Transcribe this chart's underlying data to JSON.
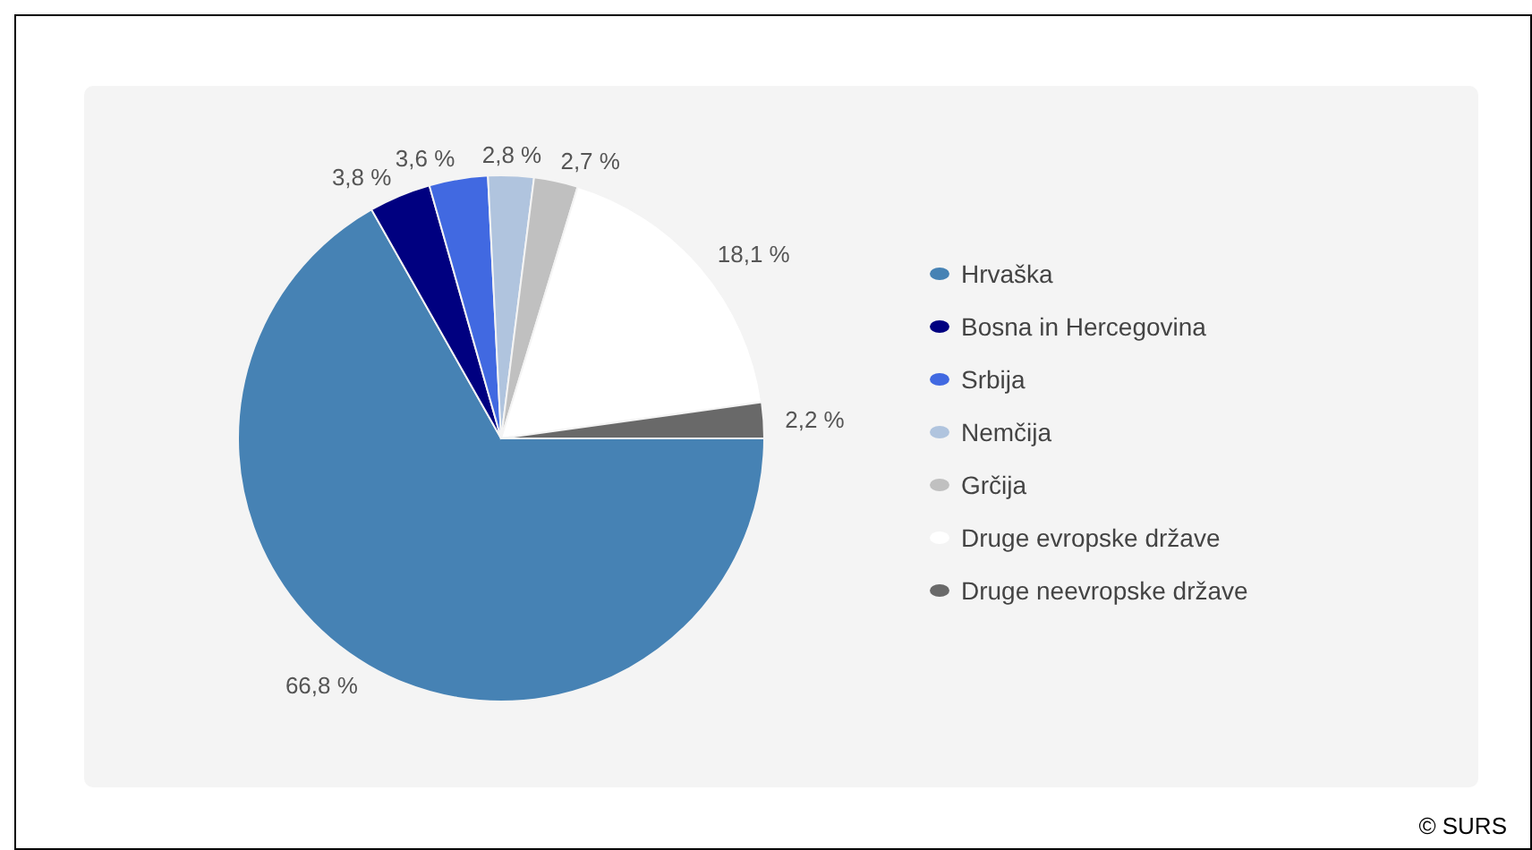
{
  "chart_data": {
    "type": "pie",
    "categories": [
      "Hrvaška",
      "Bosna in Hercegovina",
      "Srbija",
      "Nemčija",
      "Grčija",
      "Druge evropske države",
      "Druge neevropske države"
    ],
    "values": [
      66.8,
      3.8,
      3.6,
      2.8,
      2.7,
      18.1,
      2.2
    ],
    "colors": [
      "#4682b4",
      "#000080",
      "#4169e1",
      "#b0c4de",
      "#c0c0c0",
      "#ffffff",
      "#696969"
    ],
    "value_labels": [
      "66,8 %",
      "3,8 %",
      "3,6 %",
      "2,8 %",
      "2,7 %",
      "18,1 %",
      "2,2 %"
    ],
    "legend": "right",
    "annotations": [
      "© SURS"
    ]
  }
}
